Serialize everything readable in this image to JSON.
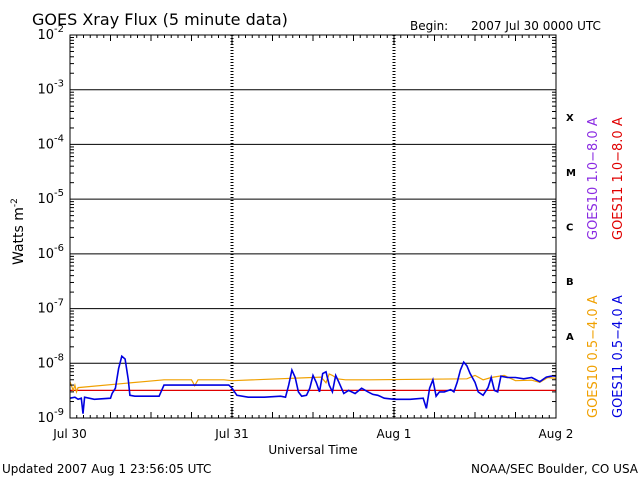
{
  "chart_data": {
    "type": "line",
    "title": "GOES Xray Flux (5 minute data)",
    "begin_label": "Begin:",
    "begin_value": "2007 Jul 30 0000 UTC",
    "ylabel_base": "Watts m",
    "ylabel_exp": "-2",
    "xlabel": "Universal Time",
    "y_scale": "log",
    "ylim": [
      1e-09,
      0.01
    ],
    "y_ticks": [
      {
        "base": "10",
        "exp": "-2"
      },
      {
        "base": "10",
        "exp": "-3"
      },
      {
        "base": "10",
        "exp": "-4"
      },
      {
        "base": "10",
        "exp": "-5"
      },
      {
        "base": "10",
        "exp": "-6"
      },
      {
        "base": "10",
        "exp": "-7"
      },
      {
        "base": "10",
        "exp": "-8"
      },
      {
        "base": "10",
        "exp": "-9"
      }
    ],
    "x_ticks": [
      "Jul 30",
      "Jul 31",
      "Aug 1",
      "Aug 2"
    ],
    "xlim_days": [
      0,
      3
    ],
    "flare_classes": [
      "X",
      "M",
      "C",
      "B",
      "A"
    ],
    "grid": "horizontal lines at decades, dashed vertical lines at day boundaries",
    "legend": [
      {
        "label": "GOES10 1.0−8.0 A",
        "color": "#8a2be2"
      },
      {
        "label": "GOES11 1.0−8.0 A",
        "color": "#e00000"
      },
      {
        "label": "GOES10 0.5−4.0 A",
        "color": "#f0a000"
      },
      {
        "label": "GOES11 0.5−4.0 A",
        "color": "#0000e0"
      }
    ],
    "series": [
      {
        "name": "GOES11 1.0−8.0 A",
        "color": "#e00000",
        "points": [
          [
            0.0,
            3.2e-09
          ],
          [
            3.0,
            3.2e-09
          ]
        ]
      },
      {
        "name": "GOES10 0.5−4.0 A",
        "color": "#f0a000",
        "points": [
          [
            0.0,
            4.6e-09
          ],
          [
            0.02,
            3.2e-09
          ],
          [
            0.03,
            4e-09
          ],
          [
            0.04,
            3e-09
          ],
          [
            0.05,
            3.6e-09
          ],
          [
            0.58,
            5e-09
          ],
          [
            0.75,
            5e-09
          ],
          [
            0.77,
            3.9e-09
          ],
          [
            0.79,
            5e-09
          ],
          [
            0.9,
            5e-09
          ],
          [
            0.95,
            5e-09
          ],
          [
            1.0,
            4.8e-09
          ],
          [
            1.55,
            5.6e-09
          ],
          [
            1.58,
            4.4e-09
          ],
          [
            1.6,
            6.4e-09
          ],
          [
            1.62,
            6e-09
          ],
          [
            1.65,
            5.2e-09
          ],
          [
            1.7,
            5e-09
          ],
          [
            1.8,
            5e-09
          ],
          [
            1.85,
            5e-09
          ],
          [
            2.45,
            5.2e-09
          ],
          [
            2.5,
            6e-09
          ],
          [
            2.55,
            5e-09
          ],
          [
            2.6,
            5.5e-09
          ],
          [
            2.68,
            6e-09
          ],
          [
            2.75,
            4.8e-09
          ],
          [
            2.85,
            4.9e-09
          ],
          [
            2.9,
            4.5e-09
          ],
          [
            2.95,
            5.5e-09
          ],
          [
            3.0,
            5.3e-09
          ]
        ]
      },
      {
        "name": "GOES11 0.5−4.0 A",
        "color": "#0000e0",
        "points": [
          [
            0.0,
            2.3e-09
          ],
          [
            0.03,
            2.4e-09
          ],
          [
            0.05,
            2.2e-09
          ],
          [
            0.07,
            2.3e-09
          ],
          [
            0.08,
            1.2e-09
          ],
          [
            0.09,
            2.4e-09
          ],
          [
            0.15,
            2.2e-09
          ],
          [
            0.25,
            2.3e-09
          ],
          [
            0.26,
            2.8e-09
          ],
          [
            0.28,
            3.5e-09
          ],
          [
            0.3,
            8e-09
          ],
          [
            0.32,
            1.35e-08
          ],
          [
            0.34,
            1.2e-08
          ],
          [
            0.36,
            5e-09
          ],
          [
            0.37,
            2.6e-09
          ],
          [
            0.4,
            2.5e-09
          ],
          [
            0.55,
            2.5e-09
          ],
          [
            0.58,
            4e-09
          ],
          [
            0.7,
            4e-09
          ],
          [
            0.85,
            4e-09
          ],
          [
            0.9,
            4e-09
          ],
          [
            0.98,
            4e-09
          ],
          [
            1.0,
            3.5e-09
          ],
          [
            1.03,
            2.6e-09
          ],
          [
            1.1,
            2.4e-09
          ],
          [
            1.2,
            2.4e-09
          ],
          [
            1.3,
            2.5e-09
          ],
          [
            1.33,
            2.4e-09
          ],
          [
            1.35,
            4e-09
          ],
          [
            1.37,
            7.5e-09
          ],
          [
            1.39,
            5.5e-09
          ],
          [
            1.41,
            3e-09
          ],
          [
            1.43,
            2.5e-09
          ],
          [
            1.46,
            2.6e-09
          ],
          [
            1.48,
            3.5e-09
          ],
          [
            1.5,
            6e-09
          ],
          [
            1.52,
            4.5e-09
          ],
          [
            1.54,
            3e-09
          ],
          [
            1.56,
            6.5e-09
          ],
          [
            1.58,
            7e-09
          ],
          [
            1.6,
            4e-09
          ],
          [
            1.62,
            3e-09
          ],
          [
            1.64,
            6e-09
          ],
          [
            1.66,
            4.5e-09
          ],
          [
            1.69,
            2.8e-09
          ],
          [
            1.72,
            3.2e-09
          ],
          [
            1.76,
            2.8e-09
          ],
          [
            1.8,
            3.5e-09
          ],
          [
            1.84,
            3e-09
          ],
          [
            1.87,
            2.7e-09
          ],
          [
            1.9,
            2.6e-09
          ],
          [
            1.94,
            2.3e-09
          ],
          [
            2.0,
            2.2e-09
          ],
          [
            2.1,
            2.2e-09
          ],
          [
            2.18,
            2.3e-09
          ],
          [
            2.2,
            1.5e-09
          ],
          [
            2.22,
            3.5e-09
          ],
          [
            2.24,
            5e-09
          ],
          [
            2.26,
            2.5e-09
          ],
          [
            2.28,
            3e-09
          ],
          [
            2.31,
            3e-09
          ],
          [
            2.35,
            3.3e-09
          ],
          [
            2.37,
            3e-09
          ],
          [
            2.39,
            4.5e-09
          ],
          [
            2.41,
            7.5e-09
          ],
          [
            2.43,
            1.05e-08
          ],
          [
            2.45,
            9e-09
          ],
          [
            2.47,
            6.5e-09
          ],
          [
            2.5,
            4.5e-09
          ],
          [
            2.52,
            3e-09
          ],
          [
            2.55,
            2.6e-09
          ],
          [
            2.58,
            3.6e-09
          ],
          [
            2.6,
            5.5e-09
          ],
          [
            2.62,
            3.2e-09
          ],
          [
            2.64,
            3e-09
          ],
          [
            2.66,
            5.8e-09
          ],
          [
            2.7,
            5.5e-09
          ],
          [
            2.75,
            5.5e-09
          ],
          [
            2.8,
            5.2e-09
          ],
          [
            2.85,
            5.5e-09
          ],
          [
            2.9,
            4.6e-09
          ],
          [
            2.94,
            5.6e-09
          ],
          [
            2.98,
            5.9e-09
          ],
          [
            3.0,
            5.8e-09
          ]
        ]
      }
    ]
  },
  "footer": {
    "updated": "Updated 2007 Aug  1 23:56:05 UTC",
    "credit": "NOAA/SEC Boulder, CO USA"
  }
}
